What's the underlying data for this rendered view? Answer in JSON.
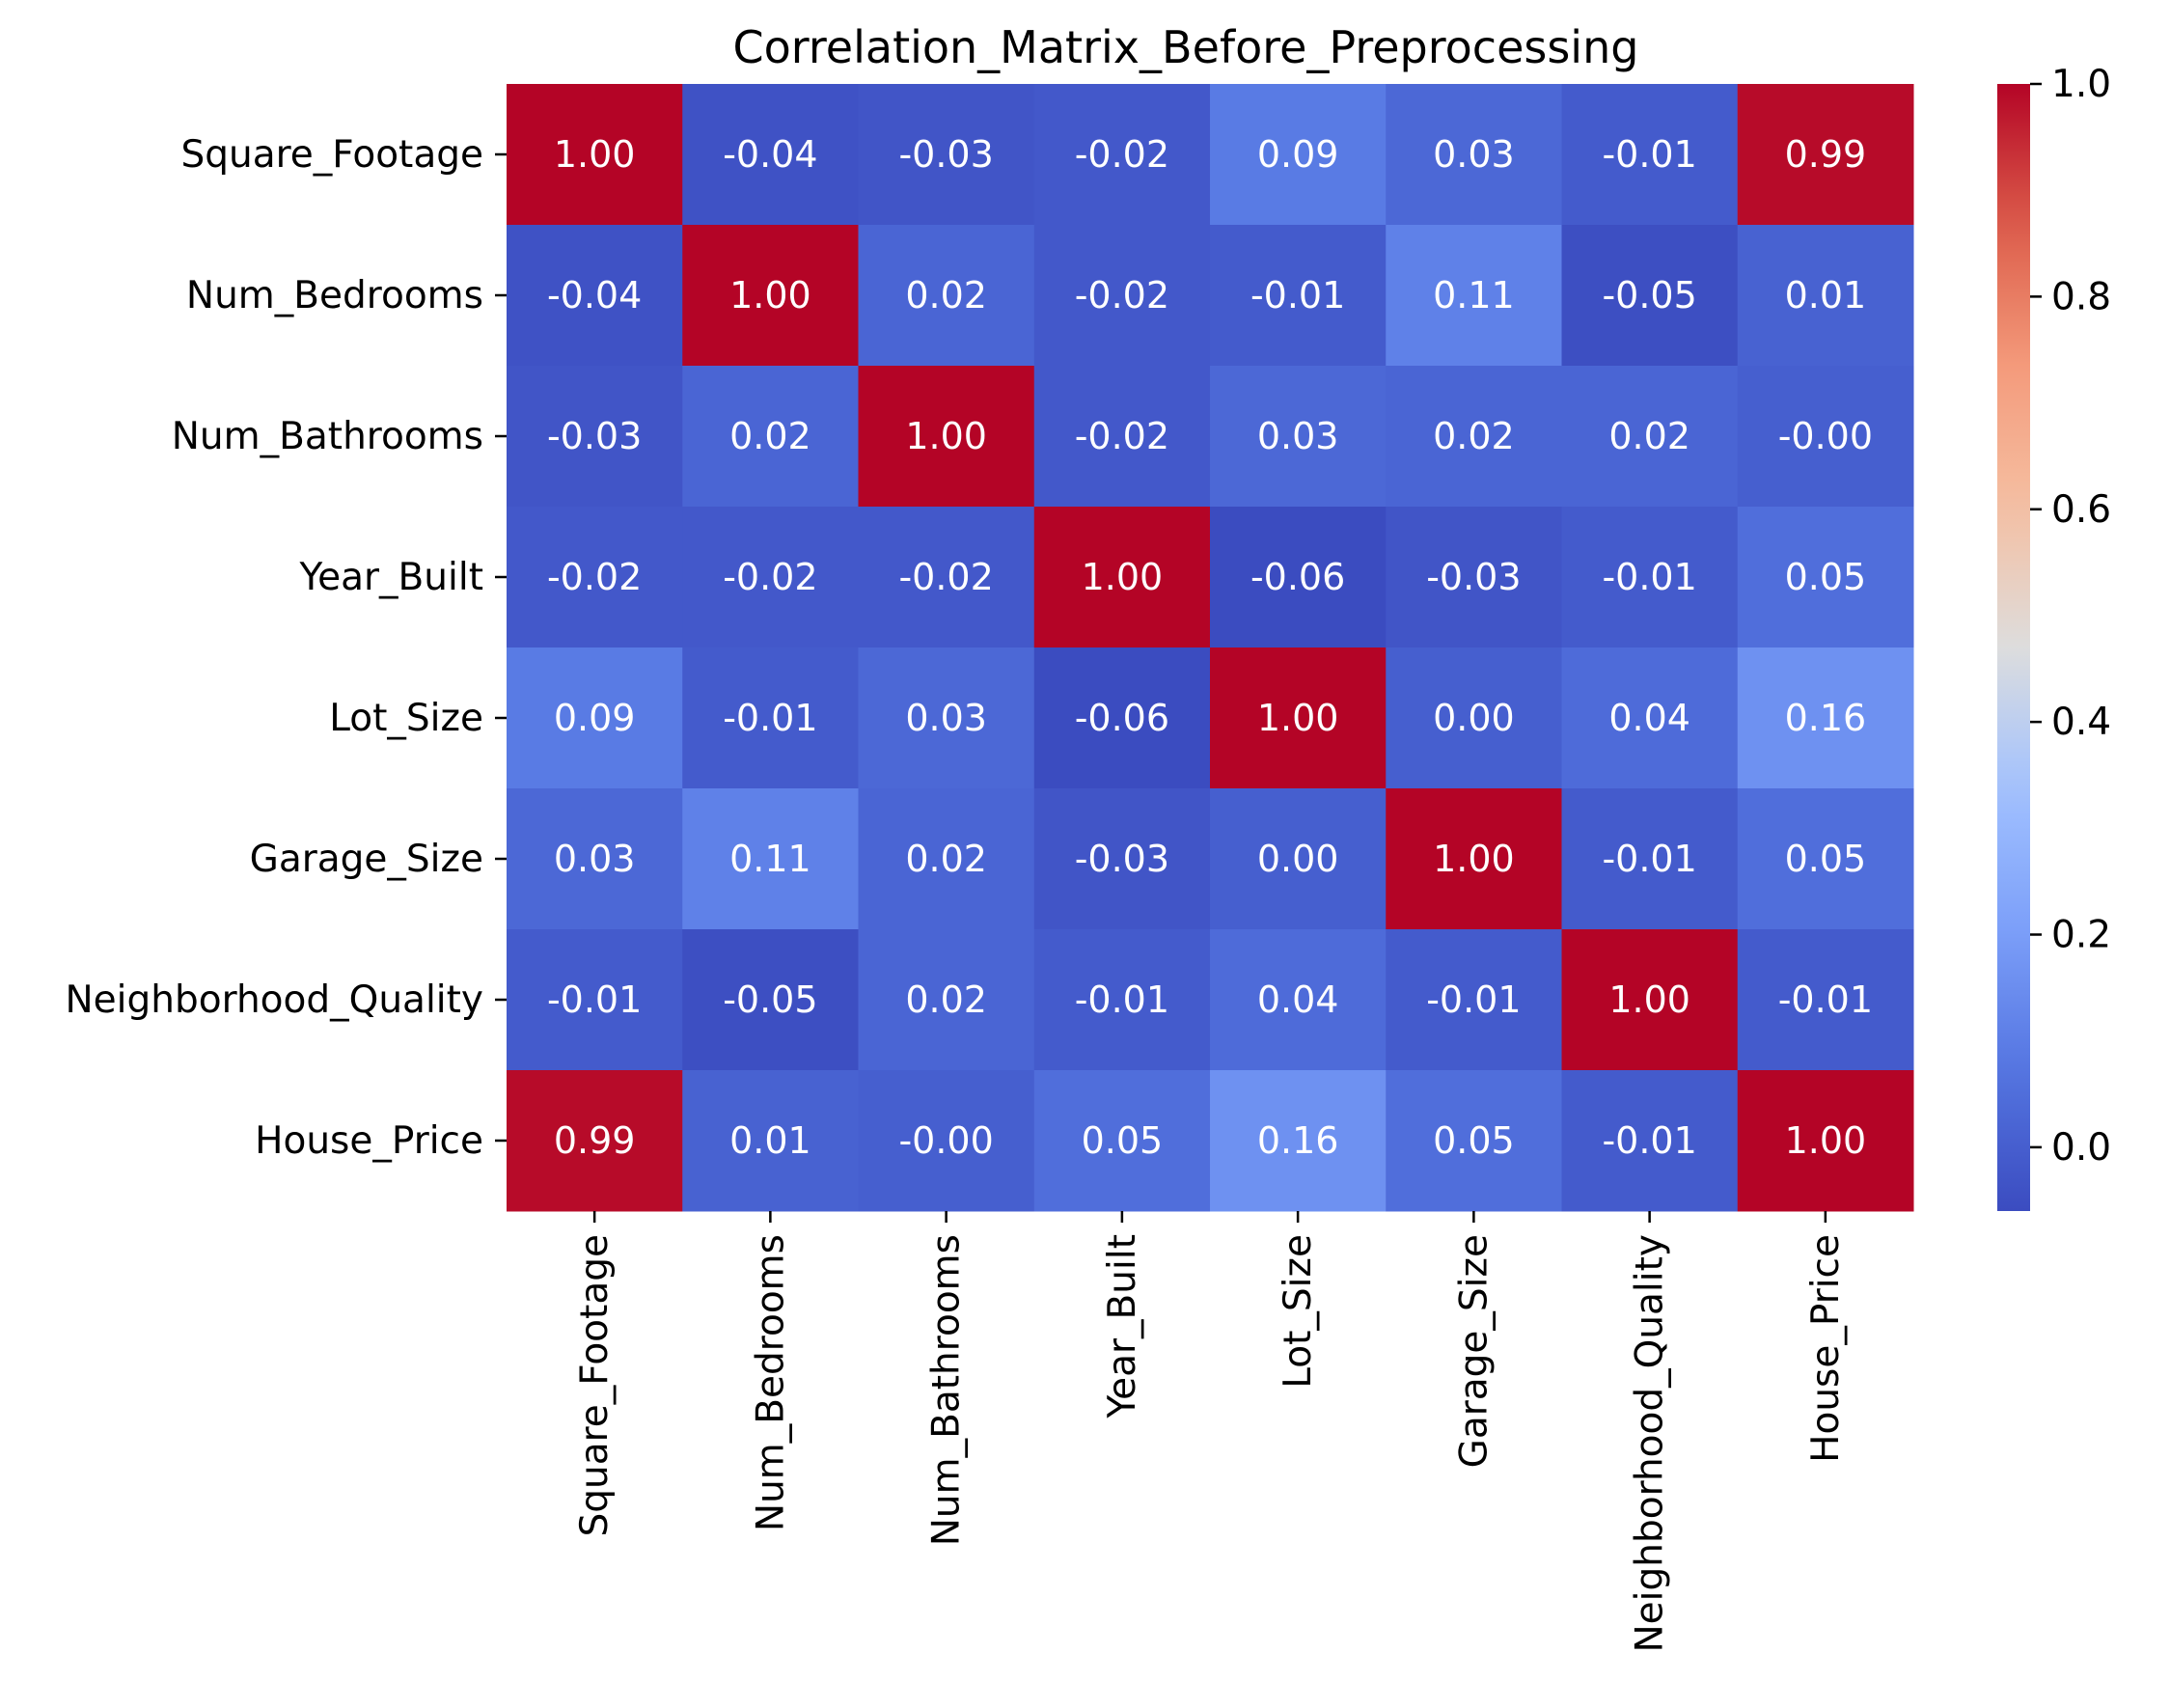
{
  "chart_data": {
    "type": "heatmap",
    "title": "Correlation_Matrix_Before_Preprocessing",
    "xlabel": "",
    "ylabel": "",
    "x_categories": [
      "Square_Footage",
      "Num_Bedrooms",
      "Num_Bathrooms",
      "Year_Built",
      "Lot_Size",
      "Garage_Size",
      "Neighborhood_Quality",
      "House_Price"
    ],
    "y_categories": [
      "Square_Footage",
      "Num_Bedrooms",
      "Num_Bathrooms",
      "Year_Built",
      "Lot_Size",
      "Garage_Size",
      "Neighborhood_Quality",
      "House_Price"
    ],
    "values": [
      [
        1.0,
        -0.04,
        -0.03,
        -0.02,
        0.09,
        0.03,
        -0.01,
        0.99
      ],
      [
        -0.04,
        1.0,
        0.02,
        -0.02,
        -0.01,
        0.11,
        -0.05,
        0.01
      ],
      [
        -0.03,
        0.02,
        1.0,
        -0.02,
        0.03,
        0.02,
        0.02,
        -0.0
      ],
      [
        -0.02,
        -0.02,
        -0.02,
        1.0,
        -0.06,
        -0.03,
        -0.01,
        0.05
      ],
      [
        0.09,
        -0.01,
        0.03,
        -0.06,
        1.0,
        0.0,
        0.04,
        0.16
      ],
      [
        0.03,
        0.11,
        0.02,
        -0.03,
        0.0,
        1.0,
        -0.01,
        0.05
      ],
      [
        -0.01,
        -0.05,
        0.02,
        -0.01,
        0.04,
        -0.01,
        1.0,
        -0.01
      ],
      [
        0.99,
        0.01,
        -0.0,
        0.05,
        0.16,
        0.05,
        -0.01,
        1.0
      ]
    ],
    "annotations": [
      [
        "1.00",
        "-0.04",
        "-0.03",
        "-0.02",
        "0.09",
        "0.03",
        "-0.01",
        "0.99"
      ],
      [
        "-0.04",
        "1.00",
        "0.02",
        "-0.02",
        "-0.01",
        "0.11",
        "-0.05",
        "0.01"
      ],
      [
        "-0.03",
        "0.02",
        "1.00",
        "-0.02",
        "0.03",
        "0.02",
        "0.02",
        "-0.00"
      ],
      [
        "-0.02",
        "-0.02",
        "-0.02",
        "1.00",
        "-0.06",
        "-0.03",
        "-0.01",
        "0.05"
      ],
      [
        "0.09",
        "-0.01",
        "0.03",
        "-0.06",
        "1.00",
        "0.00",
        "0.04",
        "0.16"
      ],
      [
        "0.03",
        "0.11",
        "0.02",
        "-0.03",
        "0.00",
        "1.00",
        "-0.01",
        "0.05"
      ],
      [
        "-0.01",
        "-0.05",
        "0.02",
        "-0.01",
        "0.04",
        "-0.01",
        "1.00",
        "-0.01"
      ],
      [
        "0.99",
        "0.01",
        "-0.00",
        "0.05",
        "0.16",
        "0.05",
        "-0.01",
        "1.00"
      ]
    ],
    "colormap": "coolwarm",
    "colorbar": {
      "range": [
        -0.06,
        1.0
      ],
      "ticks": [
        0.0,
        0.2,
        0.4,
        0.6,
        0.8,
        1.0
      ],
      "tick_labels": [
        "0.0",
        "0.2",
        "0.4",
        "0.6",
        "0.8",
        "1.0"
      ],
      "placement": "right"
    },
    "grid": false,
    "annotation_color": "#ffffff"
  }
}
